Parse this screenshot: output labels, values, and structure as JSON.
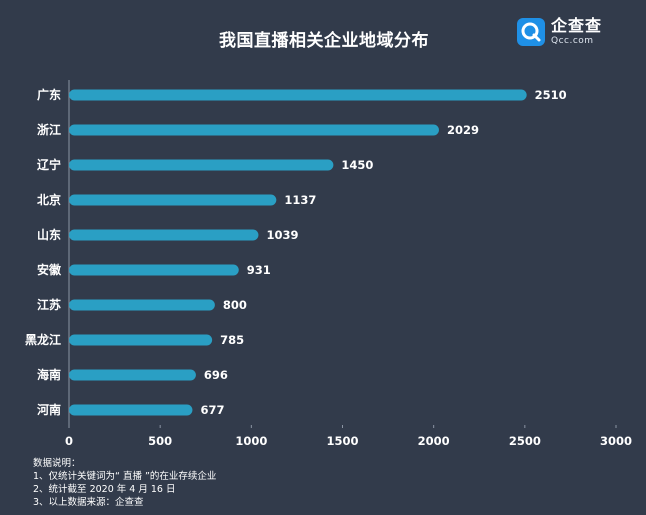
{
  "title": "我国直播相关企业地域分布",
  "logo": {
    "name_cn": "企查查",
    "name_en": "Qcc.com",
    "brand_color": "#1f90e6"
  },
  "colors": {
    "background": "#323b4b",
    "bar": "#2a9fc4",
    "text": "#ffffff"
  },
  "chart_data": {
    "type": "bar",
    "orientation": "horizontal",
    "title": "我国直播相关企业地域分布",
    "categories": [
      "广东",
      "浙江",
      "辽宁",
      "北京",
      "山东",
      "安徽",
      "江苏",
      "黑龙江",
      "海南",
      "河南"
    ],
    "values": [
      2510,
      2029,
      1450,
      1137,
      1039,
      931,
      800,
      785,
      696,
      677
    ],
    "xlim": [
      0,
      3000
    ],
    "xticks": [
      0,
      500,
      1000,
      1500,
      2000,
      2500,
      3000
    ],
    "xlabel": "",
    "ylabel": "",
    "grid": false,
    "data_labels": true
  },
  "notes": {
    "heading": "数据说明：",
    "items": [
      "1、仅统计关键词为“ 直播 ”的在业存续企业",
      "2、统计截至 2020 年 4 月 16 日",
      "3、以上数据来源：企查查"
    ]
  }
}
